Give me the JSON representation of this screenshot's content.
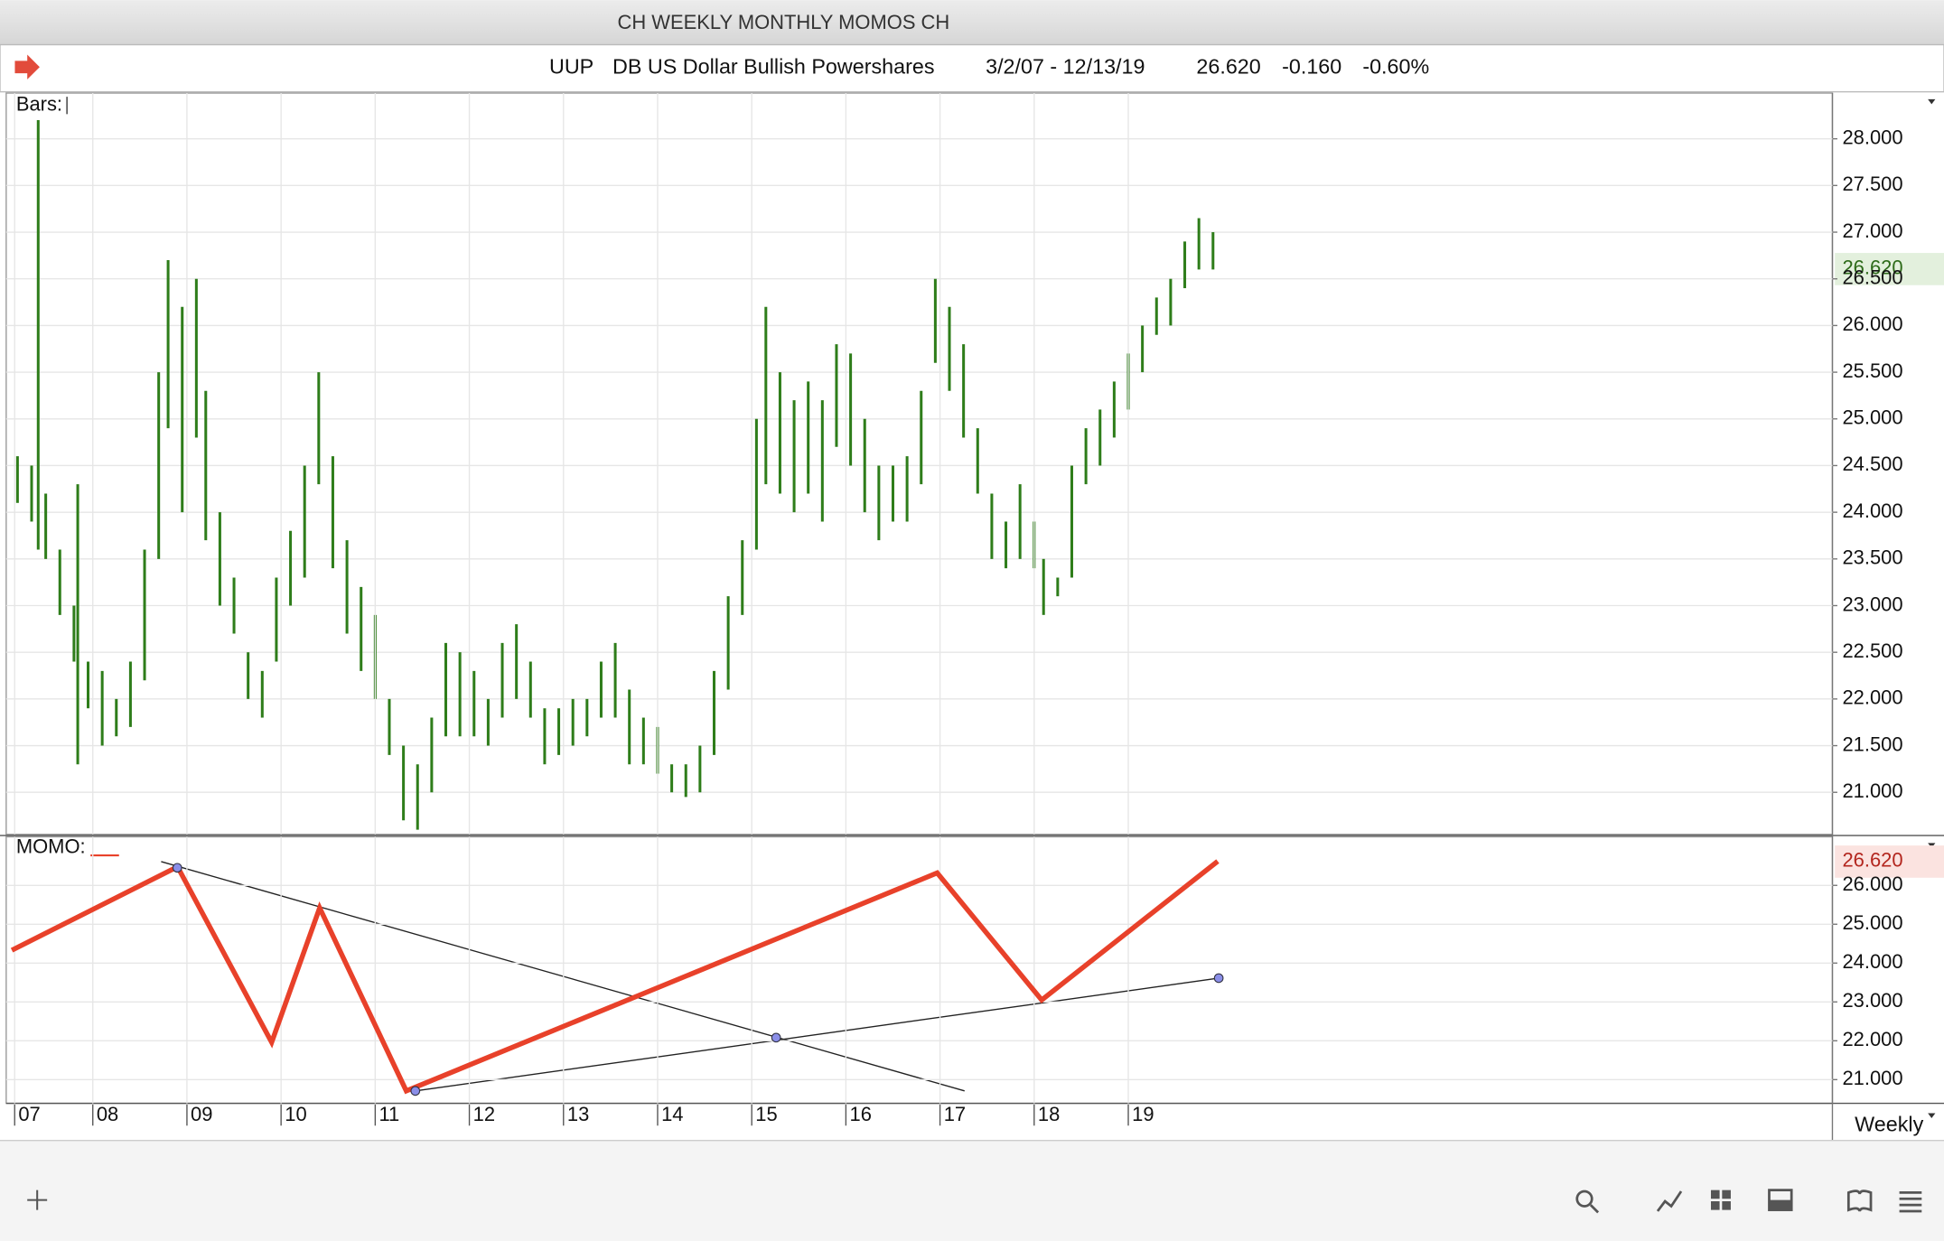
{
  "window_title": "CH WEEKLY MONTHLY MOMOS CH",
  "header": {
    "symbol": "UUP",
    "name": "DB US Dollar Bullish Powershares",
    "range": "3/2/07 - 12/13/19",
    "last": "26.620",
    "change": "-0.160",
    "change_pct": "-0.60%"
  },
  "period": "Weekly",
  "chart_data": [
    {
      "type": "bar",
      "label": "Bars:",
      "color": "#2e7d1a",
      "grid": true,
      "x": [
        2007.2,
        2007.35,
        2007.42,
        2007.5,
        2007.65,
        2007.8,
        2007.84,
        2007.95,
        2008.1,
        2008.25,
        2008.4,
        2008.55,
        2008.7,
        2008.8,
        2008.95,
        2009.1,
        2009.2,
        2009.35,
        2009.5,
        2009.65,
        2009.8,
        2009.95,
        2010.1,
        2010.25,
        2010.4,
        2010.55,
        2010.7,
        2010.85,
        2011.0,
        2011.15,
        2011.3,
        2011.45,
        2011.6,
        2011.75,
        2011.9,
        2012.05,
        2012.2,
        2012.35,
        2012.5,
        2012.65,
        2012.8,
        2012.95,
        2013.1,
        2013.25,
        2013.4,
        2013.55,
        2013.7,
        2013.85,
        2014.0,
        2014.15,
        2014.3,
        2014.45,
        2014.6,
        2014.75,
        2014.9,
        2015.05,
        2015.15,
        2015.3,
        2015.45,
        2015.6,
        2015.75,
        2015.9,
        2016.05,
        2016.2,
        2016.35,
        2016.5,
        2016.65,
        2016.8,
        2016.95,
        2017.1,
        2017.25,
        2017.4,
        2017.55,
        2017.7,
        2017.85,
        2018.0,
        2018.1,
        2018.25,
        2018.4,
        2018.55,
        2018.7,
        2018.85,
        2019.0,
        2019.15,
        2019.3,
        2019.45,
        2019.6,
        2019.75,
        2019.9
      ],
      "high": [
        24.6,
        24.5,
        28.2,
        24.2,
        23.6,
        23.0,
        24.3,
        22.4,
        22.3,
        22.0,
        22.4,
        23.6,
        25.5,
        26.7,
        26.2,
        26.5,
        25.3,
        24.0,
        23.3,
        22.5,
        22.3,
        23.3,
        23.8,
        24.5,
        25.5,
        24.6,
        23.7,
        23.2,
        22.9,
        22.0,
        21.5,
        21.3,
        21.8,
        22.6,
        22.5,
        22.3,
        22.0,
        22.6,
        22.8,
        22.4,
        21.9,
        21.9,
        22.0,
        22.0,
        22.4,
        22.6,
        22.1,
        21.8,
        21.7,
        21.3,
        21.3,
        21.5,
        22.3,
        23.1,
        23.7,
        25.0,
        26.2,
        25.5,
        25.2,
        25.4,
        25.2,
        25.8,
        25.7,
        25.0,
        24.5,
        24.5,
        24.6,
        25.3,
        26.5,
        26.2,
        25.8,
        24.9,
        24.2,
        23.9,
        24.3,
        23.9,
        23.5,
        23.3,
        24.5,
        24.9,
        25.1,
        25.4,
        25.7,
        26.0,
        26.3,
        26.5,
        26.9,
        27.15,
        27.0
      ],
      "low": [
        24.1,
        23.9,
        23.6,
        23.5,
        22.9,
        22.4,
        21.3,
        21.9,
        21.5,
        21.6,
        21.7,
        22.2,
        23.5,
        24.9,
        24.0,
        24.8,
        23.7,
        23.0,
        22.7,
        22.0,
        21.8,
        22.4,
        23.0,
        23.3,
        24.3,
        23.4,
        22.7,
        22.3,
        22.0,
        21.4,
        20.7,
        20.6,
        21.0,
        21.6,
        21.6,
        21.6,
        21.5,
        21.8,
        22.0,
        21.8,
        21.3,
        21.4,
        21.5,
        21.6,
        21.8,
        21.8,
        21.3,
        21.3,
        21.2,
        21.0,
        20.95,
        21.0,
        21.4,
        22.1,
        22.9,
        23.6,
        24.3,
        24.2,
        24.0,
        24.2,
        23.9,
        24.7,
        24.5,
        24.0,
        23.7,
        23.9,
        23.9,
        24.3,
        25.6,
        25.3,
        24.8,
        24.2,
        23.5,
        23.4,
        23.5,
        23.4,
        22.9,
        23.1,
        23.3,
        24.3,
        24.5,
        24.8,
        25.1,
        25.5,
        25.9,
        26.0,
        26.4,
        26.6,
        26.6
      ],
      "xlim": [
        2007.08,
        2026.48
      ],
      "ylim": [
        20.55,
        28.49
      ],
      "yticks": [
        {
          "value": 21,
          "label": "21.000"
        },
        {
          "value": 21.5,
          "label": "21.500"
        },
        {
          "value": 22,
          "label": "22.000"
        },
        {
          "value": 22.5,
          "label": "22.500"
        },
        {
          "value": 23,
          "label": "23.000"
        },
        {
          "value": 23.5,
          "label": "23.500"
        },
        {
          "value": 24,
          "label": "24.000"
        },
        {
          "value": 24.5,
          "label": "24.500"
        },
        {
          "value": 25,
          "label": "25.000"
        },
        {
          "value": 25.5,
          "label": "25.500"
        },
        {
          "value": 26,
          "label": "26.000"
        },
        {
          "value": 26.5,
          "label": "26.500"
        },
        {
          "value": 27,
          "label": "27.000"
        },
        {
          "value": 27.5,
          "label": "27.500"
        },
        {
          "value": 28,
          "label": "28.000"
        }
      ]
    },
    {
      "type": "line",
      "label": "MOMO:",
      "color": "#e8412a",
      "grid": true,
      "x": [
        2007.14,
        2008.9,
        2009.9,
        2010.41,
        2011.33,
        2016.97,
        2018.08,
        2019.95
      ],
      "values": [
        24.33,
        26.48,
        21.96,
        25.42,
        20.71,
        26.32,
        23.05,
        26.62
      ],
      "xlim": [
        2007.08,
        2026.48
      ],
      "ylim": [
        20.39,
        27.25
      ],
      "yticks": [
        {
          "value": 21,
          "label": "21.000"
        },
        {
          "value": 22,
          "label": "22.000"
        },
        {
          "value": 23,
          "label": "23.000"
        },
        {
          "value": 24,
          "label": "24.000"
        },
        {
          "value": 25,
          "label": "25.000"
        },
        {
          "value": 26,
          "label": "26.000"
        }
      ],
      "xticks": [
        {
          "value": 2007.17,
          "label": "07"
        },
        {
          "value": 2008.0,
          "label": "08"
        },
        {
          "value": 2009.0,
          "label": "09"
        },
        {
          "value": 2010.0,
          "label": "10"
        },
        {
          "value": 2011.0,
          "label": "11"
        },
        {
          "value": 2012.0,
          "label": "12"
        },
        {
          "value": 2013.0,
          "label": "13"
        },
        {
          "value": 2014.0,
          "label": "14"
        },
        {
          "value": 2015.0,
          "label": "15"
        },
        {
          "value": 2016.0,
          "label": "16"
        },
        {
          "value": 2017.0,
          "label": "17"
        },
        {
          "value": 2018.0,
          "label": "18"
        },
        {
          "value": 2019.0,
          "label": "19"
        }
      ]
    }
  ]
}
